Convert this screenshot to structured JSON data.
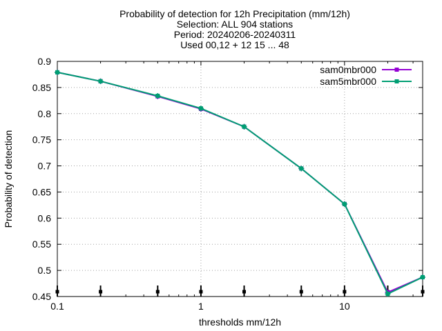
{
  "chart_data": {
    "type": "line",
    "title_lines": [
      "Probability of detection  for 12h Precipitation (mm/12h)",
      "Selection: ALL    904 stations",
      "Period: 20240206-20240311",
      "Used 00,12 + 12 15 ... 48"
    ],
    "xlabel": "thresholds mm/12h",
    "ylabel": "Probability of detection",
    "x_scale": "log",
    "xlim": [
      0.1,
      35
    ],
    "ylim": [
      0.45,
      0.9
    ],
    "x_ticks": [
      0.1,
      1,
      10
    ],
    "x_tick_labels": [
      "0.1",
      "1",
      "10"
    ],
    "y_ticks": [
      0.45,
      0.5,
      0.55,
      0.6,
      0.65,
      0.7,
      0.75,
      0.8,
      0.85,
      0.9
    ],
    "y_tick_labels": [
      "0.45",
      "0.5",
      "0.55",
      "0.6",
      "0.65",
      "0.7",
      "0.75",
      "0.8",
      "0.85",
      "0.9"
    ],
    "grid": true,
    "legend_position": "top-right",
    "x": [
      0.1,
      0.2,
      0.5,
      1,
      2,
      5,
      10,
      20,
      35
    ],
    "series": [
      {
        "name": "sam0mbr000",
        "color": "#9400d3",
        "values": [
          0.879,
          0.862,
          0.833,
          0.809,
          0.775,
          0.695,
          0.627,
          0.458,
          0.487
        ]
      },
      {
        "name": "sam5mbr000",
        "color": "#009e73",
        "values": [
          0.879,
          0.862,
          0.834,
          0.81,
          0.775,
          0.695,
          0.627,
          0.455,
          0.487
        ]
      }
    ],
    "bottom_markers_x": [
      0.1,
      0.2,
      0.5,
      1,
      2,
      5,
      10,
      20,
      35
    ]
  }
}
